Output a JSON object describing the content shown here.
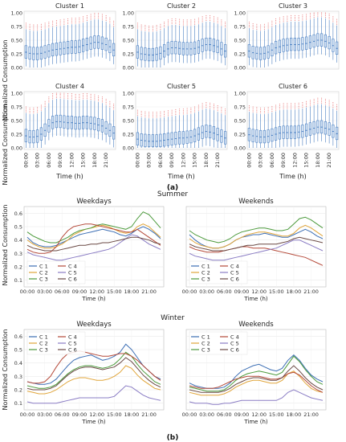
{
  "figure": {
    "panel_a_label": "(a)",
    "panel_b_label": "(b)",
    "summer_label": "Summer",
    "winter_label": "Winter"
  },
  "colors": {
    "C 1": "#3d6fb4",
    "C 2": "#e0a53a",
    "C 3": "#4c9a3c",
    "C 4": "#b54a3a",
    "C 5": "#8a7cc4",
    "C 6": "#6b4a45",
    "box": "#4a7fc1",
    "box_fill": "#d6e4f5",
    "outlier": "#e55b5b"
  },
  "boxplot_axes": {
    "ylabel": "Normalized Consumption",
    "xlabel": "Time (h)",
    "yticks": [
      "0.00",
      "0.25",
      "0.50",
      "0.75",
      "1.00"
    ],
    "xticks": [
      "00:00",
      "03:00",
      "06:00",
      "09:00",
      "12:00",
      "15:00",
      "18:00",
      "21:00"
    ]
  },
  "line_axes": {
    "ylabel": "Normalized Consumption",
    "xlabel": "Time (h)",
    "xticks": [
      "00:00",
      "03:00",
      "06:00",
      "09:00",
      "12:00",
      "15:00",
      "18:00",
      "21:00"
    ],
    "yticks_summer": [
      "0.1",
      "0.2",
      "0.3",
      "0.4",
      "0.5",
      "0.6"
    ],
    "yticks_winter": [
      "0.1",
      "0.2",
      "0.3",
      "0.4",
      "0.5",
      "0.6"
    ]
  },
  "chart_data": [
    {
      "type": "boxplot",
      "title": "Cluster 1",
      "ylim": [
        0,
        1
      ],
      "x": [
        0,
        1,
        2,
        3,
        4,
        5,
        6,
        7,
        8,
        9,
        10,
        11,
        12,
        13,
        14,
        15,
        16,
        17,
        18,
        19,
        20,
        21,
        22,
        23
      ],
      "median": [
        0.28,
        0.26,
        0.25,
        0.25,
        0.26,
        0.28,
        0.3,
        0.32,
        0.33,
        0.34,
        0.35,
        0.36,
        0.37,
        0.37,
        0.38,
        0.4,
        0.42,
        0.44,
        0.46,
        0.46,
        0.44,
        0.42,
        0.38,
        0.32
      ]
    },
    {
      "type": "boxplot",
      "title": "Cluster 2",
      "ylim": [
        0,
        1
      ],
      "x": [
        0,
        1,
        2,
        3,
        4,
        5,
        6,
        7,
        8,
        9,
        10,
        11,
        12,
        13,
        14,
        15,
        16,
        17,
        18,
        19,
        20,
        21,
        22,
        23
      ],
      "median": [
        0.28,
        0.25,
        0.24,
        0.23,
        0.23,
        0.24,
        0.26,
        0.3,
        0.34,
        0.36,
        0.36,
        0.35,
        0.34,
        0.34,
        0.34,
        0.35,
        0.37,
        0.4,
        0.42,
        0.42,
        0.4,
        0.38,
        0.34,
        0.3
      ]
    },
    {
      "type": "boxplot",
      "title": "Cluster 3",
      "ylim": [
        0,
        1
      ],
      "x": [
        0,
        1,
        2,
        3,
        4,
        5,
        6,
        7,
        8,
        9,
        10,
        11,
        12,
        13,
        14,
        15,
        16,
        17,
        18,
        19,
        20,
        21,
        22,
        23
      ],
      "median": [
        0.3,
        0.27,
        0.26,
        0.25,
        0.26,
        0.28,
        0.32,
        0.36,
        0.38,
        0.4,
        0.41,
        0.42,
        0.42,
        0.42,
        0.43,
        0.44,
        0.46,
        0.48,
        0.5,
        0.5,
        0.48,
        0.45,
        0.4,
        0.35
      ]
    },
    {
      "type": "boxplot",
      "title": "Cluster 4",
      "ylim": [
        0,
        1
      ],
      "x": [
        0,
        1,
        2,
        3,
        4,
        5,
        6,
        7,
        8,
        9,
        10,
        11,
        12,
        13,
        14,
        15,
        16,
        17,
        18,
        19,
        20,
        21,
        22,
        23
      ],
      "median": [
        0.22,
        0.2,
        0.2,
        0.21,
        0.25,
        0.32,
        0.4,
        0.46,
        0.48,
        0.48,
        0.47,
        0.46,
        0.46,
        0.45,
        0.45,
        0.46,
        0.46,
        0.45,
        0.44,
        0.42,
        0.4,
        0.36,
        0.32,
        0.27
      ]
    },
    {
      "type": "boxplot",
      "title": "Cluster 5",
      "ylim": [
        0,
        1
      ],
      "x": [
        0,
        1,
        2,
        3,
        4,
        5,
        6,
        7,
        8,
        9,
        10,
        11,
        12,
        13,
        14,
        15,
        16,
        17,
        18,
        19,
        20,
        21,
        22,
        23
      ],
      "median": [
        0.16,
        0.14,
        0.13,
        0.12,
        0.12,
        0.12,
        0.13,
        0.14,
        0.15,
        0.16,
        0.17,
        0.18,
        0.18,
        0.19,
        0.2,
        0.22,
        0.25,
        0.28,
        0.3,
        0.29,
        0.27,
        0.24,
        0.21,
        0.18
      ]
    },
    {
      "type": "boxplot",
      "title": "Cluster 6",
      "ylim": [
        0,
        1
      ],
      "x": [
        0,
        1,
        2,
        3,
        4,
        5,
        6,
        7,
        8,
        9,
        10,
        11,
        12,
        13,
        14,
        15,
        16,
        17,
        18,
        19,
        20,
        21,
        22,
        23
      ],
      "median": [
        0.24,
        0.22,
        0.21,
        0.2,
        0.2,
        0.21,
        0.23,
        0.25,
        0.27,
        0.28,
        0.28,
        0.28,
        0.28,
        0.29,
        0.3,
        0.32,
        0.34,
        0.36,
        0.38,
        0.38,
        0.36,
        0.34,
        0.3,
        0.26
      ]
    },
    {
      "type": "line",
      "title": "Weekdays",
      "group": "Summer",
      "ylim": [
        0.05,
        0.65
      ],
      "x": [
        0,
        1,
        2,
        3,
        4,
        5,
        6,
        7,
        8,
        9,
        10,
        11,
        12,
        13,
        14,
        15,
        16,
        17,
        18,
        19,
        20,
        21,
        22,
        23
      ],
      "legend": "lower-left",
      "series": [
        {
          "name": "C 1",
          "values": [
            0.42,
            0.38,
            0.36,
            0.35,
            0.35,
            0.36,
            0.38,
            0.4,
            0.42,
            0.44,
            0.45,
            0.46,
            0.47,
            0.48,
            0.47,
            0.46,
            0.44,
            0.43,
            0.45,
            0.48,
            0.5,
            0.48,
            0.45,
            0.41
          ]
        },
        {
          "name": "C 2",
          "values": [
            0.4,
            0.37,
            0.35,
            0.34,
            0.34,
            0.35,
            0.37,
            0.4,
            0.44,
            0.46,
            0.48,
            0.49,
            0.5,
            0.51,
            0.5,
            0.48,
            0.46,
            0.45,
            0.46,
            0.5,
            0.52,
            0.5,
            0.46,
            0.42
          ]
        },
        {
          "name": "C 3",
          "values": [
            0.46,
            0.43,
            0.41,
            0.39,
            0.38,
            0.38,
            0.4,
            0.42,
            0.45,
            0.47,
            0.48,
            0.49,
            0.51,
            0.52,
            0.51,
            0.5,
            0.49,
            0.48,
            0.5,
            0.56,
            0.61,
            0.59,
            0.54,
            0.49
          ]
        },
        {
          "name": "C 4",
          "values": [
            0.33,
            0.31,
            0.3,
            0.3,
            0.31,
            0.35,
            0.42,
            0.47,
            0.5,
            0.51,
            0.52,
            0.52,
            0.51,
            0.5,
            0.49,
            0.48,
            0.47,
            0.46,
            0.46,
            0.48,
            0.45,
            0.42,
            0.39,
            0.36
          ]
        },
        {
          "name": "C 5",
          "values": [
            0.31,
            0.29,
            0.28,
            0.27,
            0.26,
            0.25,
            0.25,
            0.26,
            0.27,
            0.28,
            0.29,
            0.3,
            0.31,
            0.32,
            0.33,
            0.35,
            0.38,
            0.41,
            0.44,
            0.43,
            0.4,
            0.37,
            0.35,
            0.33
          ]
        },
        {
          "name": "C 6",
          "values": [
            0.36,
            0.34,
            0.33,
            0.32,
            0.32,
            0.32,
            0.33,
            0.34,
            0.35,
            0.36,
            0.36,
            0.37,
            0.37,
            0.38,
            0.38,
            0.39,
            0.4,
            0.41,
            0.42,
            0.42,
            0.41,
            0.4,
            0.38,
            0.37
          ]
        }
      ]
    },
    {
      "type": "line",
      "title": "Weekends",
      "group": "Summer",
      "ylim": [
        0.05,
        0.65
      ],
      "x": [
        0,
        1,
        2,
        3,
        4,
        5,
        6,
        7,
        8,
        9,
        10,
        11,
        12,
        13,
        14,
        15,
        16,
        17,
        18,
        19,
        20,
        21,
        22,
        23
      ],
      "legend": "lower-left",
      "series": [
        {
          "name": "C 1",
          "values": [
            0.44,
            0.4,
            0.37,
            0.35,
            0.34,
            0.34,
            0.35,
            0.37,
            0.4,
            0.42,
            0.43,
            0.44,
            0.44,
            0.45,
            0.44,
            0.43,
            0.42,
            0.42,
            0.44,
            0.46,
            0.48,
            0.46,
            0.43,
            0.41
          ]
        },
        {
          "name": "C 2",
          "values": [
            0.41,
            0.38,
            0.36,
            0.35,
            0.34,
            0.34,
            0.35,
            0.37,
            0.4,
            0.42,
            0.44,
            0.45,
            0.46,
            0.46,
            0.45,
            0.44,
            0.43,
            0.43,
            0.45,
            0.49,
            0.51,
            0.49,
            0.46,
            0.43
          ]
        },
        {
          "name": "C 3",
          "values": [
            0.47,
            0.44,
            0.42,
            0.4,
            0.39,
            0.38,
            0.39,
            0.41,
            0.44,
            0.46,
            0.47,
            0.48,
            0.49,
            0.49,
            0.48,
            0.47,
            0.47,
            0.48,
            0.52,
            0.56,
            0.57,
            0.55,
            0.52,
            0.49
          ]
        },
        {
          "name": "C 4",
          "values": [
            0.35,
            0.33,
            0.32,
            0.31,
            0.31,
            0.31,
            0.32,
            0.33,
            0.34,
            0.35,
            0.35,
            0.34,
            0.34,
            0.34,
            0.33,
            0.32,
            0.31,
            0.3,
            0.29,
            0.28,
            0.27,
            0.25,
            0.23,
            0.21
          ]
        },
        {
          "name": "C 5",
          "values": [
            0.3,
            0.28,
            0.27,
            0.26,
            0.25,
            0.25,
            0.25,
            0.26,
            0.27,
            0.28,
            0.29,
            0.3,
            0.31,
            0.32,
            0.33,
            0.34,
            0.36,
            0.38,
            0.4,
            0.4,
            0.38,
            0.36,
            0.34,
            0.32
          ]
        },
        {
          "name": "C 6",
          "values": [
            0.37,
            0.35,
            0.34,
            0.33,
            0.32,
            0.32,
            0.32,
            0.33,
            0.34,
            0.35,
            0.36,
            0.36,
            0.37,
            0.37,
            0.37,
            0.37,
            0.38,
            0.39,
            0.41,
            0.42,
            0.41,
            0.4,
            0.39,
            0.38
          ]
        }
      ]
    },
    {
      "type": "line",
      "title": "Weekdays",
      "group": "Winter",
      "ylim": [
        0.05,
        0.65
      ],
      "x": [
        0,
        1,
        2,
        3,
        4,
        5,
        6,
        7,
        8,
        9,
        10,
        11,
        12,
        13,
        14,
        15,
        16,
        17,
        18,
        19,
        20,
        21,
        22,
        23
      ],
      "legend": "upper-left",
      "series": [
        {
          "name": "C 1",
          "values": [
            0.26,
            0.25,
            0.24,
            0.24,
            0.25,
            0.28,
            0.33,
            0.38,
            0.42,
            0.44,
            0.45,
            0.46,
            0.44,
            0.42,
            0.43,
            0.45,
            0.48,
            0.54,
            0.5,
            0.44,
            0.38,
            0.34,
            0.3,
            0.28
          ]
        },
        {
          "name": "C 2",
          "values": [
            0.19,
            0.18,
            0.17,
            0.17,
            0.18,
            0.2,
            0.23,
            0.26,
            0.28,
            0.29,
            0.29,
            0.28,
            0.27,
            0.27,
            0.28,
            0.3,
            0.33,
            0.38,
            0.36,
            0.31,
            0.27,
            0.24,
            0.21,
            0.2
          ]
        },
        {
          "name": "C 3",
          "values": [
            0.23,
            0.22,
            0.21,
            0.21,
            0.22,
            0.24,
            0.28,
            0.32,
            0.35,
            0.37,
            0.38,
            0.38,
            0.37,
            0.36,
            0.37,
            0.39,
            0.43,
            0.48,
            0.45,
            0.39,
            0.34,
            0.3,
            0.26,
            0.24
          ]
        },
        {
          "name": "C 4",
          "values": [
            0.26,
            0.25,
            0.25,
            0.26,
            0.3,
            0.37,
            0.43,
            0.47,
            0.48,
            0.49,
            0.48,
            0.47,
            0.46,
            0.45,
            0.45,
            0.46,
            0.47,
            0.47,
            0.45,
            0.42,
            0.38,
            0.34,
            0.3,
            0.27
          ]
        },
        {
          "name": "C 5",
          "values": [
            0.11,
            0.1,
            0.1,
            0.1,
            0.1,
            0.1,
            0.11,
            0.12,
            0.13,
            0.14,
            0.14,
            0.14,
            0.14,
            0.14,
            0.14,
            0.15,
            0.19,
            0.23,
            0.22,
            0.19,
            0.16,
            0.14,
            0.13,
            0.12
          ]
        },
        {
          "name": "C 6",
          "values": [
            0.21,
            0.2,
            0.2,
            0.2,
            0.21,
            0.23,
            0.27,
            0.31,
            0.34,
            0.36,
            0.37,
            0.37,
            0.36,
            0.35,
            0.36,
            0.37,
            0.4,
            0.44,
            0.41,
            0.36,
            0.31,
            0.27,
            0.24,
            0.22
          ]
        }
      ]
    },
    {
      "type": "line",
      "title": "Weekends",
      "group": "Winter",
      "ylim": [
        0.05,
        0.65
      ],
      "x": [
        0,
        1,
        2,
        3,
        4,
        5,
        6,
        7,
        8,
        9,
        10,
        11,
        12,
        13,
        14,
        15,
        16,
        17,
        18,
        19,
        20,
        21,
        22,
        23
      ],
      "legend": "upper-left",
      "series": [
        {
          "name": "C 1",
          "values": [
            0.25,
            0.23,
            0.22,
            0.21,
            0.21,
            0.21,
            0.22,
            0.25,
            0.3,
            0.34,
            0.36,
            0.38,
            0.39,
            0.37,
            0.35,
            0.34,
            0.36,
            0.42,
            0.46,
            0.42,
            0.36,
            0.31,
            0.28,
            0.26
          ]
        },
        {
          "name": "C 2",
          "values": [
            0.18,
            0.17,
            0.16,
            0.16,
            0.16,
            0.16,
            0.17,
            0.19,
            0.22,
            0.24,
            0.26,
            0.27,
            0.27,
            0.26,
            0.25,
            0.25,
            0.27,
            0.32,
            0.34,
            0.3,
            0.25,
            0.21,
            0.19,
            0.18
          ]
        },
        {
          "name": "C 3",
          "values": [
            0.22,
            0.21,
            0.2,
            0.19,
            0.19,
            0.19,
            0.2,
            0.23,
            0.27,
            0.3,
            0.32,
            0.33,
            0.34,
            0.33,
            0.32,
            0.31,
            0.33,
            0.39,
            0.45,
            0.41,
            0.35,
            0.3,
            0.26,
            0.24
          ]
        },
        {
          "name": "C 4",
          "values": [
            0.23,
            0.22,
            0.21,
            0.21,
            0.21,
            0.22,
            0.24,
            0.26,
            0.28,
            0.29,
            0.3,
            0.3,
            0.3,
            0.29,
            0.28,
            0.28,
            0.29,
            0.32,
            0.33,
            0.31,
            0.27,
            0.23,
            0.2,
            0.18
          ]
        },
        {
          "name": "C 5",
          "values": [
            0.11,
            0.1,
            0.1,
            0.1,
            0.09,
            0.09,
            0.1,
            0.1,
            0.11,
            0.12,
            0.12,
            0.12,
            0.12,
            0.12,
            0.12,
            0.12,
            0.14,
            0.18,
            0.2,
            0.18,
            0.16,
            0.14,
            0.13,
            0.12
          ]
        },
        {
          "name": "C 6",
          "values": [
            0.2,
            0.19,
            0.18,
            0.18,
            0.18,
            0.18,
            0.19,
            0.21,
            0.24,
            0.26,
            0.28,
            0.29,
            0.29,
            0.28,
            0.27,
            0.27,
            0.29,
            0.34,
            0.38,
            0.34,
            0.29,
            0.25,
            0.22,
            0.2
          ]
        }
      ]
    }
  ]
}
